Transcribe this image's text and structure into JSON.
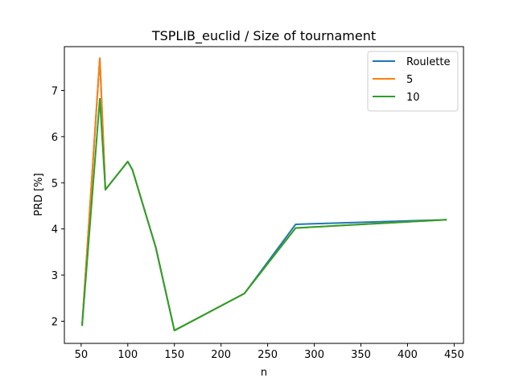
{
  "chart_data": {
    "type": "line",
    "title": "TSPLIB_euclid / Size of tournament",
    "xlabel": "n",
    "ylabel": "PRD [%]",
    "xlim": [
      32,
      460
    ],
    "ylim": [
      1.52,
      7.95
    ],
    "xticks": [
      50,
      100,
      150,
      200,
      250,
      300,
      350,
      400,
      450
    ],
    "yticks": [
      2,
      3,
      4,
      5,
      6,
      7
    ],
    "grid": false,
    "legend": "top-right",
    "x": [
      51,
      70,
      76,
      100,
      105,
      130,
      150,
      225,
      280,
      442
    ],
    "series": [
      {
        "name": "Roulette",
        "color": "#1f77b4",
        "values": [
          1.9,
          7.7,
          4.85,
          5.46,
          5.28,
          3.6,
          1.8,
          2.6,
          4.1,
          4.2
        ]
      },
      {
        "name": "5",
        "color": "#ff7f0e",
        "values": [
          1.9,
          7.7,
          4.85,
          5.46,
          5.28,
          3.6,
          1.8,
          2.6,
          4.02,
          4.2
        ]
      },
      {
        "name": "10",
        "color": "#2ca02c",
        "values": [
          1.9,
          6.82,
          4.85,
          5.46,
          5.28,
          3.6,
          1.8,
          2.6,
          4.02,
          4.2
        ]
      }
    ]
  }
}
